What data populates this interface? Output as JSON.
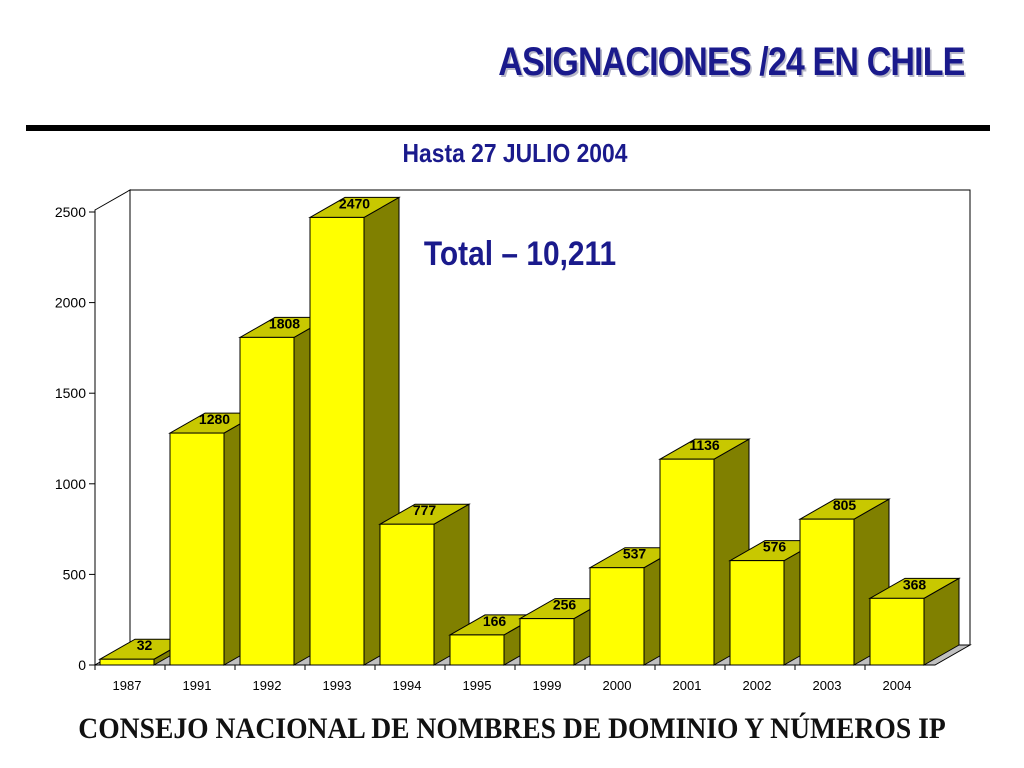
{
  "slide": {
    "title": "ASIGNACIONES /24 EN CHILE",
    "footer": "CONSEJO NACIONAL DE NOMBRES DE DOMINIO Y NÚMEROS IP"
  },
  "colors": {
    "title": "#1a1a8c",
    "bar_front": "#ffff00",
    "bar_top": "#c8c800",
    "bar_side": "#808000"
  },
  "chart_data": {
    "type": "bar",
    "subtitle": "Hasta 27 JULIO 2004",
    "annotation": "Total – 10,211",
    "categories": [
      "1987",
      "1991",
      "1992",
      "1993",
      "1994",
      "1995",
      "1999",
      "2000",
      "2001",
      "2002",
      "2003",
      "2004"
    ],
    "values": [
      32,
      1280,
      1808,
      2470,
      777,
      166,
      256,
      537,
      1136,
      576,
      805,
      368
    ],
    "data_labels": [
      "32",
      "1280",
      "1808",
      "2470",
      "777",
      "166",
      "256",
      "537",
      "1136",
      "576",
      "805",
      "368"
    ],
    "yticks": [
      "0",
      "500",
      "1000",
      "1500",
      "2000",
      "2500"
    ],
    "ylim": [
      0,
      2500
    ],
    "xlabel": "",
    "ylabel": "",
    "style": "3d"
  }
}
